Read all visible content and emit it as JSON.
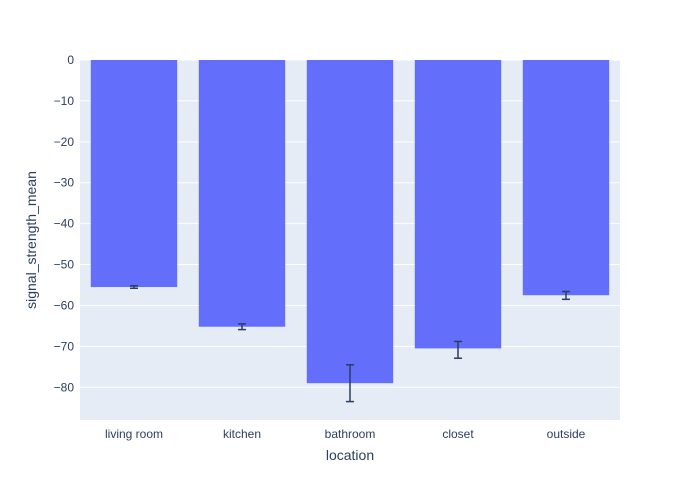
{
  "chart_data": {
    "type": "bar",
    "categories": [
      "living room",
      "kitchen",
      "bathroom",
      "closet",
      "outside"
    ],
    "values": [
      -55.5,
      -65.2,
      -79.0,
      -70.5,
      -57.5
    ],
    "error_plus": [
      0.3,
      0.7,
      4.5,
      1.7,
      0.9
    ],
    "error_minus": [
      0.3,
      0.7,
      4.5,
      2.4,
      1.0
    ],
    "xlabel": "location",
    "ylabel": "signal_strength_mean",
    "ylim": [
      -88,
      0
    ],
    "yticks": [
      0,
      -10,
      -20,
      -30,
      -40,
      -50,
      -60,
      -70,
      -80
    ],
    "grid": true,
    "colors": {
      "bar": "#636efa",
      "plot_bg": "#e5ecf6",
      "grid": "#ffffff",
      "error_bar": "#2a3f5f",
      "text": "#2a3f5f"
    }
  }
}
